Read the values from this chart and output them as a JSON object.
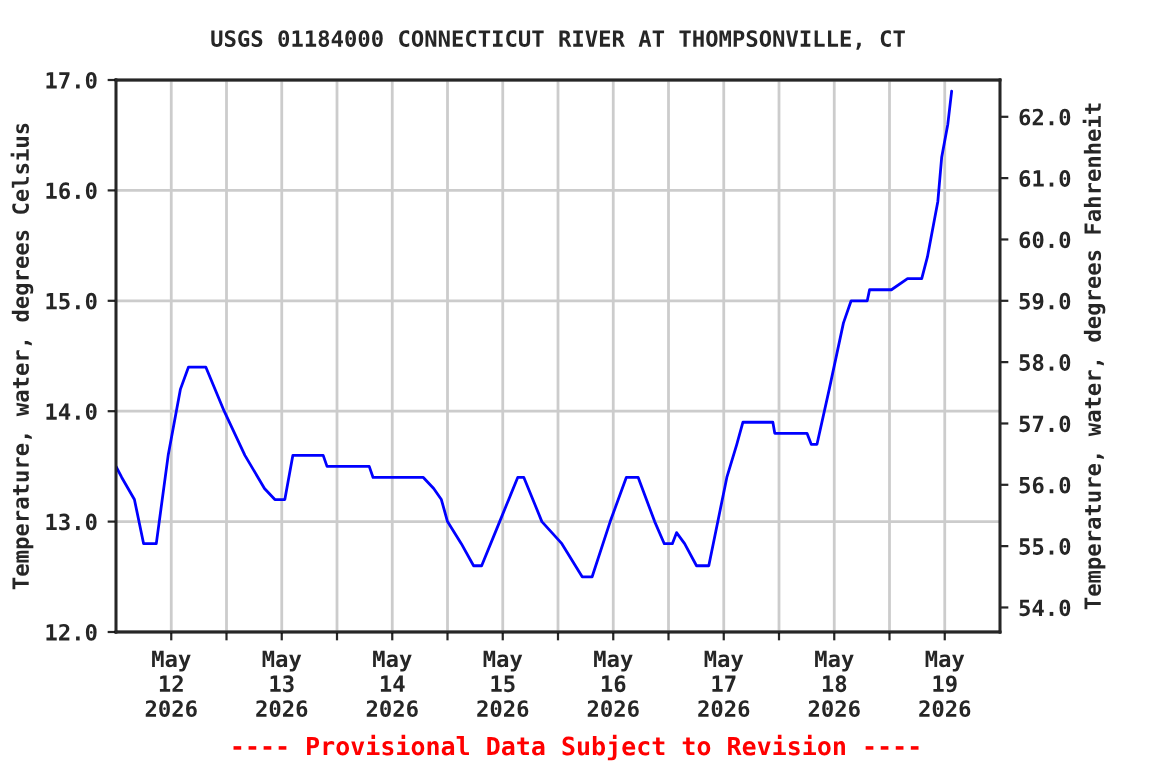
{
  "chart_data": {
    "type": "line",
    "title": "USGS 01184000 CONNECTICUT RIVER AT THOMPSONVILLE, CT",
    "ylabel": "Temperature, water, degrees Celsius",
    "y2label": "Temperature, water, degrees Fahrenheit",
    "annotations": [
      "---- Provisional Data Subject to Revision ----"
    ],
    "x": [
      "2026-05-12T00:00",
      "2026-05-12T01:15",
      "2026-05-12T04:00",
      "2026-05-12T06:00",
      "2026-05-12T08:45",
      "2026-05-12T11:20",
      "2026-05-12T14:00",
      "2026-05-12T15:45",
      "2026-05-12T19:30",
      "2026-05-12T23:30",
      "2026-05-13T04:00",
      "2026-05-13T08:15",
      "2026-05-13T10:30",
      "2026-05-13T12:40",
      "2026-05-13T14:25",
      "2026-05-13T21:00",
      "2026-05-13T21:50",
      "2026-05-14T07:00",
      "2026-05-14T07:50",
      "2026-05-14T18:45",
      "2026-05-14T21:00",
      "2026-05-14T22:40",
      "2026-05-15T00:00",
      "2026-05-15T03:00",
      "2026-05-15T05:40",
      "2026-05-15T07:25",
      "2026-05-15T11:20",
      "2026-05-15T15:15",
      "2026-05-15T16:35",
      "2026-05-15T20:30",
      "2026-05-16T00:50",
      "2026-05-16T05:15",
      "2026-05-16T07:25",
      "2026-05-16T11:20",
      "2026-05-16T14:50",
      "2026-05-16T17:25",
      "2026-05-16T21:00",
      "2026-05-16T23:05",
      "2026-05-17T00:50",
      "2026-05-17T01:45",
      "2026-05-17T03:30",
      "2026-05-17T06:05",
      "2026-05-17T08:45",
      "2026-05-17T12:40",
      "2026-05-17T14:50",
      "2026-05-17T16:10",
      "2026-05-17T22:40",
      "2026-05-17T23:05",
      "2026-05-18T06:05",
      "2026-05-18T07:00",
      "2026-05-18T08:15",
      "2026-05-18T10:55",
      "2026-05-18T14:00",
      "2026-05-18T15:40",
      "2026-05-18T19:10",
      "2026-05-18T19:40",
      "2026-05-19T00:25",
      "2026-05-19T03:55",
      "2026-05-19T07:00",
      "2026-05-19T08:15",
      "2026-05-19T10:30",
      "2026-05-19T11:20",
      "2026-05-19T12:40",
      "2026-05-19T13:30"
    ],
    "series": [
      {
        "color": "#0000ff",
        "values": [
          13.5,
          13.4,
          13.2,
          12.8,
          12.8,
          13.6,
          14.2,
          14.4,
          14.4,
          14.0,
          13.6,
          13.3,
          13.2,
          13.2,
          13.6,
          13.6,
          13.5,
          13.5,
          13.4,
          13.4,
          13.3,
          13.2,
          13.0,
          12.8,
          12.6,
          12.6,
          13.0,
          13.4,
          13.4,
          13.0,
          12.8,
          12.5,
          12.5,
          13.0,
          13.4,
          13.4,
          13.0,
          12.8,
          12.8,
          12.9,
          12.8,
          12.6,
          12.6,
          13.4,
          13.7,
          13.9,
          13.9,
          13.8,
          13.8,
          13.7,
          13.7,
          14.2,
          14.8,
          15.0,
          15.0,
          15.1,
          15.1,
          15.2,
          15.2,
          15.4,
          15.9,
          16.3,
          16.6,
          16.9
        ]
      }
    ],
    "xlim": [
      "2026-05-12T00:00",
      "2026-05-20T00:00"
    ],
    "xticks": [
      {
        "value": "2026-05-12T12:00",
        "label": "May\n12\n2026"
      },
      {
        "value": "2026-05-13T12:00",
        "label": "May\n13\n2026"
      },
      {
        "value": "2026-05-14T12:00",
        "label": "May\n14\n2026"
      },
      {
        "value": "2026-05-15T12:00",
        "label": "May\n15\n2026"
      },
      {
        "value": "2026-05-16T12:00",
        "label": "May\n16\n2026"
      },
      {
        "value": "2026-05-17T12:00",
        "label": "May\n17\n2026"
      },
      {
        "value": "2026-05-18T12:00",
        "label": "May\n18\n2026"
      },
      {
        "value": "2026-05-19T12:00",
        "label": "May\n19\n2026"
      },
      {
        "value": "2026-05-13T00:00",
        "label": null
      },
      {
        "value": "2026-05-14T00:00",
        "label": null
      },
      {
        "value": "2026-05-15T00:00",
        "label": null
      },
      {
        "value": "2026-05-16T00:00",
        "label": null
      },
      {
        "value": "2026-05-17T00:00",
        "label": null
      },
      {
        "value": "2026-05-18T00:00",
        "label": null
      },
      {
        "value": "2026-05-19T00:00",
        "label": null
      }
    ],
    "ylim": [
      12.0,
      17.0
    ],
    "yticks": [
      {
        "value": 12,
        "label": "12.0"
      },
      {
        "value": 13,
        "label": "13.0"
      },
      {
        "value": 14,
        "label": "14.0"
      },
      {
        "value": 15,
        "label": "15.0"
      },
      {
        "value": 16,
        "label": "16.0"
      },
      {
        "value": 17,
        "label": "17.0"
      }
    ],
    "y2lim": [
      53.6,
      62.6
    ],
    "y2ticks": [
      {
        "value": 54,
        "label": "54.0"
      },
      {
        "value": 55,
        "label": "55.0"
      },
      {
        "value": 56,
        "label": "56.0"
      },
      {
        "value": 57,
        "label": "57.0"
      },
      {
        "value": 58,
        "label": "58.0"
      },
      {
        "value": 59,
        "label": "59.0"
      },
      {
        "value": 60,
        "label": "60.0"
      },
      {
        "value": 61,
        "label": "61.0"
      },
      {
        "value": 62,
        "label": "62.0"
      }
    ],
    "grid": true
  }
}
